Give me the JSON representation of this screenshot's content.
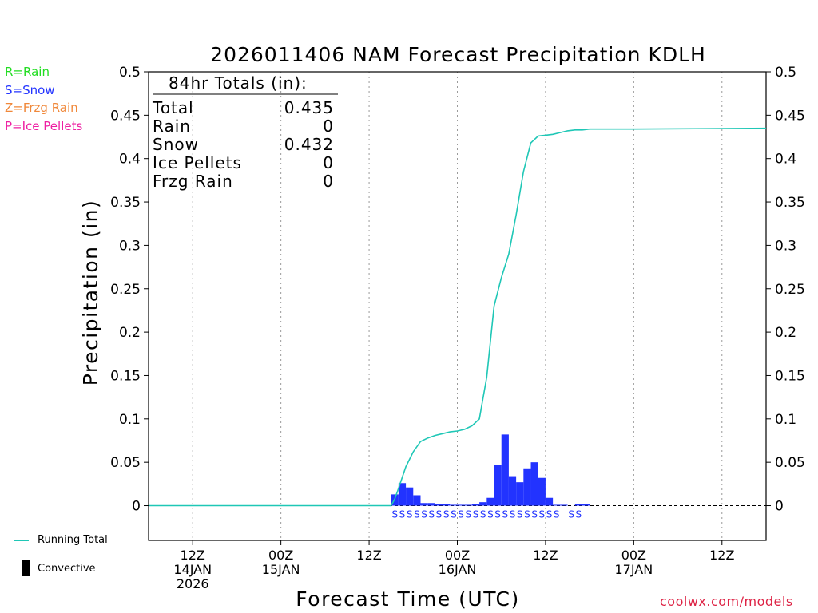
{
  "colors": {
    "rain": "#22dd22",
    "snow": "#2233ff",
    "frzg_rain": "#f0883a",
    "ice_pellets": "#ee1fa2",
    "running_total": "#1fc7b6",
    "bars": "#2233ff",
    "credit": "#dd2244"
  },
  "type_legend": {
    "rain": "R=Rain",
    "snow": "S=Snow",
    "frzg_rain": "Z=Frzg Rain",
    "ice_pellets": "P=Ice Pellets"
  },
  "bottom_legend": {
    "running_total": "Running Total",
    "convective": "Convective"
  },
  "credit": "coolwx.com/models",
  "chart_data": {
    "type": "bar",
    "title": "2026011406 NAM Forecast Precipitation KDLH",
    "xlabel": "Forecast Time (UTC)",
    "ylabel": "Precipitation (in)",
    "ylim": [
      -0.04,
      0.5
    ],
    "y_ticks": [
      0,
      0.05,
      0.1,
      0.15,
      0.2,
      0.25,
      0.3,
      0.35,
      0.4,
      0.45,
      0.5
    ],
    "y_tick_labels": [
      "0",
      "0.05",
      "0.1",
      "0.15",
      "0.2",
      "0.25",
      "0.3",
      "0.35",
      "0.4",
      "0.45",
      "0.5"
    ],
    "x_unit": "forecast hour",
    "xlim": [
      0,
      84
    ],
    "x_ticks": [
      {
        "hour": 6,
        "lines": [
          "12Z",
          "14JAN",
          "2026"
        ]
      },
      {
        "hour": 18,
        "lines": [
          "00Z",
          "15JAN"
        ]
      },
      {
        "hour": 30,
        "lines": [
          "12Z"
        ]
      },
      {
        "hour": 42,
        "lines": [
          "00Z",
          "16JAN"
        ]
      },
      {
        "hour": 54,
        "lines": [
          "12Z"
        ]
      },
      {
        "hour": 66,
        "lines": [
          "00Z",
          "17JAN"
        ]
      },
      {
        "hour": 78,
        "lines": [
          "12Z"
        ]
      }
    ],
    "totals_box": {
      "header": "84hr Totals (in):",
      "rows": [
        {
          "label": "Total",
          "value": "0.435"
        },
        {
          "label": "Rain",
          "value": "0"
        },
        {
          "label": "Snow",
          "value": "0.432"
        },
        {
          "label": "Ice Pellets",
          "value": "0"
        },
        {
          "label": "Frzg Rain",
          "value": "0"
        }
      ]
    },
    "hourly_precip": {
      "name": "Hourly precipitation",
      "start_hours": [
        33,
        34,
        35,
        36,
        37,
        38,
        39,
        40,
        41,
        42,
        43,
        44,
        45,
        46,
        47,
        48,
        49,
        50,
        51,
        52,
        53,
        54,
        55,
        56,
        57,
        58,
        59
      ],
      "values": [
        0.013,
        0.026,
        0.021,
        0.012,
        0.003,
        0.003,
        0.002,
        0.002,
        0.001,
        0.001,
        0.001,
        0.002,
        0.004,
        0.009,
        0.047,
        0.082,
        0.034,
        0.027,
        0.043,
        0.05,
        0.032,
        0.009,
        0.001,
        0.001,
        0.0,
        0.002,
        0.002
      ]
    },
    "running_total": {
      "name": "Running Total",
      "hours": [
        0,
        33,
        33.5,
        34,
        35,
        36,
        37,
        38,
        39,
        40,
        41,
        42,
        43,
        44,
        45,
        46,
        47,
        48,
        49,
        50,
        51,
        52,
        53,
        54,
        55,
        56,
        57,
        58,
        59,
        60,
        66,
        84
      ],
      "values": [
        0,
        0,
        0.008,
        0.02,
        0.045,
        0.062,
        0.074,
        0.078,
        0.081,
        0.083,
        0.085,
        0.086,
        0.088,
        0.092,
        0.1,
        0.148,
        0.23,
        0.263,
        0.29,
        0.335,
        0.385,
        0.418,
        0.426,
        0.427,
        0.428,
        0.43,
        0.432,
        0.433,
        0.433,
        0.434,
        0.434,
        0.435
      ]
    },
    "precip_type_markers": {
      "symbol": "S",
      "hours": [
        33,
        34,
        35,
        36,
        37,
        38,
        39,
        40,
        41,
        42,
        43,
        44,
        45,
        46,
        47,
        48,
        49,
        50,
        51,
        52,
        53,
        54,
        55,
        57,
        58
      ]
    },
    "legend": [
      "Running Total",
      "Convective"
    ]
  }
}
